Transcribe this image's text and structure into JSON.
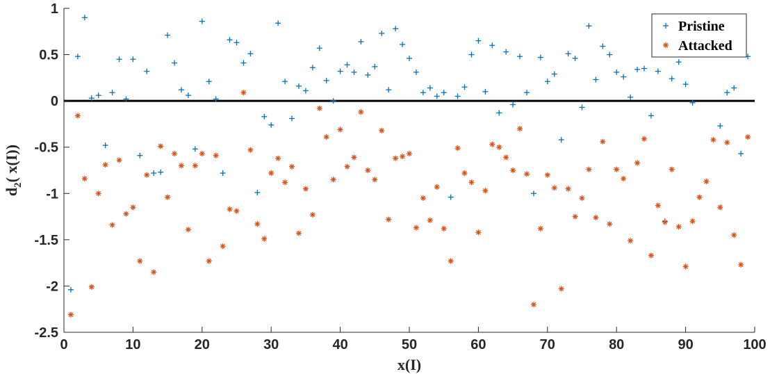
{
  "chart_data": {
    "type": "scatter",
    "xlabel": "x(I)",
    "ylabel_main": "d",
    "ylabel_sub": "2",
    "ylabel_tail": "( x(I))",
    "xlim": [
      0,
      100
    ],
    "ylim": [
      -2.5,
      1
    ],
    "xticks": [
      0,
      10,
      20,
      30,
      40,
      50,
      60,
      70,
      80,
      90,
      100
    ],
    "yticks": [
      1,
      0.5,
      0,
      -0.5,
      -1,
      -1.5,
      -2,
      -2.5
    ],
    "ytick_labels": [
      "1",
      "0.5",
      "0",
      "-0.5",
      "-1",
      "-1.5",
      "-2",
      "-2.5"
    ],
    "grid": false,
    "reference_line_y": 0,
    "legend_position": "top-right",
    "series": [
      {
        "name": "Pristine",
        "marker": "plus",
        "color": "#0072BD",
        "x": [
          1,
          2,
          3,
          4,
          5,
          6,
          7,
          8,
          9,
          10,
          11,
          12,
          13,
          14,
          15,
          16,
          17,
          18,
          19,
          20,
          21,
          22,
          23,
          24,
          25,
          26,
          27,
          28,
          29,
          30,
          31,
          32,
          33,
          34,
          35,
          36,
          37,
          38,
          39,
          40,
          41,
          42,
          43,
          44,
          45,
          46,
          47,
          48,
          49,
          50,
          51,
          52,
          53,
          54,
          55,
          56,
          57,
          58,
          59,
          60,
          61,
          62,
          63,
          64,
          65,
          66,
          67,
          68,
          69,
          70,
          71,
          72,
          73,
          74,
          75,
          76,
          77,
          78,
          79,
          80,
          81,
          82,
          83,
          84,
          85,
          86,
          87,
          88,
          89,
          90,
          91,
          92,
          93,
          94,
          95,
          96,
          97,
          98,
          99
        ],
        "y": [
          -2.04,
          0.48,
          0.9,
          0.03,
          0.06,
          -0.48,
          0.09,
          0.45,
          0.02,
          0.45,
          -0.59,
          0.32,
          -0.78,
          -0.77,
          0.71,
          0.41,
          0.12,
          0.06,
          -0.52,
          0.86,
          0.21,
          0.02,
          -0.78,
          0.66,
          0.63,
          0.41,
          0.51,
          -0.99,
          -0.17,
          -0.26,
          0.84,
          0.21,
          -0.19,
          0.16,
          0.11,
          0.36,
          0.57,
          0.22,
          0.0,
          0.32,
          0.39,
          0.31,
          0.64,
          0.28,
          0.37,
          0.73,
          0.12,
          0.78,
          0.61,
          0.46,
          0.31,
          0.09,
          0.14,
          0.05,
          0.09,
          -1.04,
          0.05,
          0.15,
          0.5,
          0.65,
          0.1,
          0.6,
          -0.13,
          0.53,
          -0.04,
          0.48,
          0.09,
          -1.0,
          0.47,
          0.21,
          0.29,
          -0.42,
          0.51,
          0.46,
          -0.07,
          0.81,
          0.23,
          0.59,
          0.5,
          0.31,
          0.26,
          0.04,
          0.34,
          0.35,
          -0.16,
          0.32,
          -1.3,
          0.24,
          0.42,
          0.18,
          -0.02,
          null,
          null,
          null,
          -0.27,
          0.09,
          0.14,
          -0.57,
          0.48
        ]
      },
      {
        "name": "Attacked",
        "marker": "asterisk",
        "color": "#D95319",
        "x": [
          1,
          2,
          3,
          4,
          5,
          6,
          7,
          8,
          9,
          10,
          11,
          12,
          13,
          14,
          15,
          16,
          17,
          18,
          19,
          20,
          21,
          22,
          23,
          24,
          25,
          26,
          27,
          28,
          29,
          30,
          31,
          32,
          33,
          34,
          35,
          36,
          37,
          38,
          39,
          40,
          41,
          42,
          43,
          44,
          45,
          46,
          47,
          48,
          49,
          50,
          51,
          52,
          53,
          54,
          55,
          56,
          57,
          58,
          59,
          60,
          61,
          62,
          63,
          64,
          65,
          66,
          67,
          68,
          69,
          70,
          71,
          72,
          73,
          74,
          75,
          76,
          77,
          78,
          79,
          80,
          81,
          82,
          83,
          84,
          85,
          86,
          87,
          88,
          89,
          90,
          91,
          92,
          93,
          94,
          95,
          96,
          97,
          98,
          99
        ],
        "y": [
          -2.31,
          -0.16,
          -0.84,
          -2.01,
          -1.0,
          -0.69,
          -1.34,
          -0.64,
          -1.22,
          -1.15,
          -1.73,
          -0.8,
          -1.85,
          -0.49,
          -1.04,
          -0.57,
          -0.7,
          -1.39,
          -0.7,
          -0.57,
          -1.73,
          -0.59,
          -1.57,
          -1.17,
          -1.19,
          0.09,
          -0.53,
          -1.33,
          -1.49,
          -0.78,
          -0.62,
          -0.88,
          -0.71,
          -1.43,
          -0.95,
          -1.23,
          -0.08,
          -0.39,
          -0.85,
          -0.31,
          -0.71,
          -0.61,
          -0.12,
          -0.75,
          -0.85,
          -0.32,
          -1.28,
          -0.62,
          -0.6,
          -0.57,
          -1.37,
          -1.05,
          -1.29,
          -0.93,
          -1.38,
          -1.73,
          -0.51,
          -0.78,
          -0.88,
          -1.42,
          -0.97,
          -0.47,
          -0.5,
          -0.61,
          -0.75,
          -0.3,
          -0.79,
          -2.2,
          -1.38,
          -0.8,
          -0.94,
          -2.03,
          -0.95,
          -1.25,
          -1.05,
          -0.74,
          -1.26,
          -0.44,
          -1.33,
          -0.74,
          -0.84,
          -1.51,
          -0.67,
          -0.41,
          -1.67,
          -1.13,
          -1.31,
          -0.74,
          -1.36,
          -1.79,
          -1.3,
          -1.04,
          -0.87,
          -0.42,
          -1.15,
          -0.45,
          -1.45,
          -1.77,
          -0.39
        ]
      }
    ]
  }
}
